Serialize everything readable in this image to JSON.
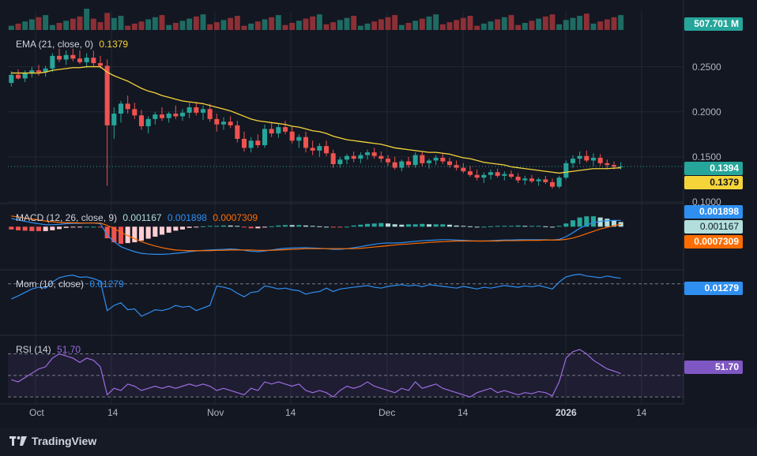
{
  "brand": {
    "name": "TradingView"
  },
  "colors": {
    "up": "#26a69a",
    "down": "#ef5350",
    "ema": "#f5d43a",
    "macd": "#2f8ff0",
    "signal": "#ff6d00",
    "mom": "#2f8ff0",
    "rsi": "#9c6be0",
    "grid": "#232734",
    "text": "#b2b5be"
  },
  "chart_data": {
    "type": "candlestick",
    "x_labels": [
      "Oct",
      "14",
      "Nov",
      "14",
      "Dec",
      "14",
      "2026",
      "14"
    ],
    "volume": {
      "last_label": "507.701 M"
    },
    "price_panel": {
      "legend": {
        "name": "EMA (21, close, 0)",
        "value": "0.1379"
      },
      "y_ticks": [
        "0.2500",
        "0.2000",
        "0.1500",
        "0.1000"
      ],
      "y_tick_values": [
        0.25,
        0.2,
        0.15,
        0.1
      ],
      "ylim": [
        0.1,
        0.275
      ],
      "last_price_label": "0.1394",
      "ema_label": "0.1379",
      "candles_ohlc": [
        [
          0.232,
          0.245,
          0.228,
          0.241
        ],
        [
          0.241,
          0.247,
          0.236,
          0.237
        ],
        [
          0.237,
          0.246,
          0.233,
          0.243
        ],
        [
          0.243,
          0.25,
          0.238,
          0.246
        ],
        [
          0.246,
          0.252,
          0.24,
          0.244
        ],
        [
          0.244,
          0.251,
          0.239,
          0.248
        ],
        [
          0.248,
          0.265,
          0.244,
          0.262
        ],
        [
          0.262,
          0.27,
          0.255,
          0.258
        ],
        [
          0.258,
          0.268,
          0.252,
          0.263
        ],
        [
          0.263,
          0.27,
          0.256,
          0.259
        ],
        [
          0.259,
          0.268,
          0.253,
          0.255
        ],
        [
          0.255,
          0.265,
          0.249,
          0.26
        ],
        [
          0.26,
          0.268,
          0.25,
          0.254
        ],
        [
          0.254,
          0.262,
          0.248,
          0.251
        ],
        [
          0.251,
          0.258,
          0.118,
          0.185
        ],
        [
          0.185,
          0.205,
          0.17,
          0.198
        ],
        [
          0.198,
          0.212,
          0.188,
          0.209
        ],
        [
          0.209,
          0.218,
          0.198,
          0.203
        ],
        [
          0.203,
          0.21,
          0.192,
          0.196
        ],
        [
          0.196,
          0.202,
          0.18,
          0.184
        ],
        [
          0.184,
          0.195,
          0.176,
          0.192
        ],
        [
          0.192,
          0.2,
          0.186,
          0.197
        ],
        [
          0.197,
          0.205,
          0.19,
          0.193
        ],
        [
          0.193,
          0.2,
          0.188,
          0.198
        ],
        [
          0.198,
          0.207,
          0.192,
          0.195
        ],
        [
          0.195,
          0.203,
          0.19,
          0.199
        ],
        [
          0.199,
          0.21,
          0.193,
          0.205
        ],
        [
          0.205,
          0.211,
          0.196,
          0.199
        ],
        [
          0.199,
          0.207,
          0.191,
          0.203
        ],
        [
          0.203,
          0.209,
          0.189,
          0.192
        ],
        [
          0.192,
          0.198,
          0.178,
          0.186
        ],
        [
          0.186,
          0.194,
          0.18,
          0.189
        ],
        [
          0.189,
          0.195,
          0.182,
          0.185
        ],
        [
          0.185,
          0.19,
          0.166,
          0.17
        ],
        [
          0.17,
          0.178,
          0.156,
          0.16
        ],
        [
          0.16,
          0.172,
          0.155,
          0.168
        ],
        [
          0.168,
          0.175,
          0.16,
          0.163
        ],
        [
          0.163,
          0.186,
          0.16,
          0.181
        ],
        [
          0.181,
          0.188,
          0.172,
          0.176
        ],
        [
          0.176,
          0.186,
          0.171,
          0.183
        ],
        [
          0.183,
          0.19,
          0.175,
          0.178
        ],
        [
          0.178,
          0.184,
          0.165,
          0.168
        ],
        [
          0.168,
          0.175,
          0.16,
          0.172
        ],
        [
          0.172,
          0.178,
          0.155,
          0.16
        ],
        [
          0.16,
          0.168,
          0.152,
          0.157
        ],
        [
          0.157,
          0.165,
          0.15,
          0.162
        ],
        [
          0.162,
          0.168,
          0.151,
          0.154
        ],
        [
          0.154,
          0.158,
          0.138,
          0.142
        ],
        [
          0.142,
          0.15,
          0.138,
          0.147
        ],
        [
          0.147,
          0.153,
          0.142,
          0.151
        ],
        [
          0.151,
          0.156,
          0.144,
          0.148
        ],
        [
          0.148,
          0.155,
          0.143,
          0.152
        ],
        [
          0.152,
          0.158,
          0.147,
          0.155
        ],
        [
          0.155,
          0.16,
          0.148,
          0.151
        ],
        [
          0.151,
          0.156,
          0.144,
          0.148
        ],
        [
          0.148,
          0.152,
          0.14,
          0.144
        ],
        [
          0.144,
          0.15,
          0.136,
          0.138
        ],
        [
          0.138,
          0.147,
          0.134,
          0.145
        ],
        [
          0.145,
          0.15,
          0.138,
          0.141
        ],
        [
          0.141,
          0.155,
          0.138,
          0.152
        ],
        [
          0.152,
          0.156,
          0.14,
          0.143
        ],
        [
          0.143,
          0.148,
          0.137,
          0.146
        ],
        [
          0.146,
          0.152,
          0.141,
          0.149
        ],
        [
          0.149,
          0.154,
          0.142,
          0.145
        ],
        [
          0.145,
          0.149,
          0.138,
          0.141
        ],
        [
          0.141,
          0.146,
          0.135,
          0.138
        ],
        [
          0.138,
          0.143,
          0.132,
          0.134
        ],
        [
          0.134,
          0.14,
          0.128,
          0.13
        ],
        [
          0.13,
          0.136,
          0.124,
          0.127
        ],
        [
          0.127,
          0.133,
          0.121,
          0.13
        ],
        [
          0.13,
          0.136,
          0.125,
          0.133
        ],
        [
          0.133,
          0.137,
          0.127,
          0.129
        ],
        [
          0.129,
          0.134,
          0.124,
          0.131
        ],
        [
          0.131,
          0.135,
          0.126,
          0.128
        ],
        [
          0.128,
          0.132,
          0.121,
          0.124
        ],
        [
          0.124,
          0.129,
          0.119,
          0.126
        ],
        [
          0.126,
          0.13,
          0.121,
          0.123
        ],
        [
          0.123,
          0.127,
          0.118,
          0.125
        ],
        [
          0.125,
          0.129,
          0.12,
          0.122
        ],
        [
          0.122,
          0.126,
          0.115,
          0.117
        ],
        [
          0.117,
          0.129,
          0.115,
          0.127
        ],
        [
          0.127,
          0.146,
          0.125,
          0.143
        ],
        [
          0.143,
          0.152,
          0.138,
          0.148
        ],
        [
          0.148,
          0.156,
          0.142,
          0.151
        ],
        [
          0.151,
          0.157,
          0.144,
          0.146
        ],
        [
          0.146,
          0.154,
          0.14,
          0.149
        ],
        [
          0.149,
          0.153,
          0.14,
          0.143
        ],
        [
          0.143,
          0.147,
          0.137,
          0.141
        ],
        [
          0.141,
          0.145,
          0.136,
          0.139
        ],
        [
          0.139,
          0.144,
          0.136,
          0.1394
        ]
      ],
      "ema": [
        0.243,
        0.243,
        0.243,
        0.243,
        0.243,
        0.244,
        0.246,
        0.247,
        0.248,
        0.249,
        0.249,
        0.25,
        0.25,
        0.25,
        0.244,
        0.24,
        0.237,
        0.234,
        0.23,
        0.226,
        0.223,
        0.221,
        0.218,
        0.216,
        0.214,
        0.212,
        0.211,
        0.21,
        0.209,
        0.207,
        0.205,
        0.203,
        0.201,
        0.198,
        0.195,
        0.192,
        0.19,
        0.189,
        0.188,
        0.187,
        0.186,
        0.184,
        0.183,
        0.181,
        0.179,
        0.178,
        0.176,
        0.173,
        0.171,
        0.169,
        0.168,
        0.167,
        0.166,
        0.165,
        0.164,
        0.162,
        0.16,
        0.159,
        0.158,
        0.157,
        0.156,
        0.155,
        0.155,
        0.154,
        0.153,
        0.151,
        0.149,
        0.148,
        0.146,
        0.144,
        0.143,
        0.142,
        0.141,
        0.139,
        0.138,
        0.137,
        0.136,
        0.135,
        0.134,
        0.133,
        0.132,
        0.133,
        0.134,
        0.135,
        0.136,
        0.137,
        0.137,
        0.137,
        0.1375,
        0.1379
      ]
    },
    "macd_panel": {
      "legend": {
        "name": "MACD (12, 26, close, 9)",
        "histogram": "0.001167",
        "macd": "0.001898",
        "signal": "0.0007309"
      },
      "ylim": [
        -0.012,
        0.006
      ],
      "macd": [
        0.0025,
        0.002,
        0.0016,
        0.0012,
        0.0009,
        0.0006,
        0.0006,
        0.0007,
        0.0009,
        0.001,
        0.001,
        0.0011,
        0.0011,
        0.0009,
        -0.0025,
        -0.0045,
        -0.006,
        -0.0068,
        -0.0075,
        -0.008,
        -0.0082,
        -0.0083,
        -0.0083,
        -0.0082,
        -0.008,
        -0.0078,
        -0.0075,
        -0.0073,
        -0.0071,
        -0.007,
        -0.0069,
        -0.0068,
        -0.0067,
        -0.0068,
        -0.0071,
        -0.0074,
        -0.0075,
        -0.0073,
        -0.007,
        -0.0067,
        -0.0065,
        -0.0064,
        -0.0063,
        -0.0063,
        -0.0064,
        -0.0065,
        -0.0066,
        -0.0068,
        -0.0068,
        -0.0066,
        -0.0063,
        -0.006,
        -0.0056,
        -0.0053,
        -0.005,
        -0.0049,
        -0.0049,
        -0.0048,
        -0.0046,
        -0.0044,
        -0.0042,
        -0.0041,
        -0.004,
        -0.0039,
        -0.0039,
        -0.004,
        -0.0041,
        -0.0042,
        -0.0043,
        -0.0043,
        -0.0042,
        -0.0041,
        -0.004,
        -0.004,
        -0.0039,
        -0.0039,
        -0.0039,
        -0.0039,
        -0.0039,
        -0.004,
        -0.0038,
        -0.003,
        -0.0018,
        -0.0005,
        0.0005,
        0.0012,
        0.0016,
        0.0018,
        0.0019,
        0.001898
      ],
      "signal": [
        0.0032,
        0.0029,
        0.0026,
        0.0023,
        0.002,
        0.0017,
        0.0015,
        0.0013,
        0.0012,
        0.0012,
        0.0011,
        0.0011,
        0.0011,
        0.0011,
        0.0004,
        -0.0006,
        -0.0017,
        -0.0027,
        -0.0036,
        -0.0045,
        -0.0052,
        -0.0058,
        -0.0063,
        -0.0067,
        -0.007,
        -0.0071,
        -0.0072,
        -0.0072,
        -0.0072,
        -0.0072,
        -0.0071,
        -0.0071,
        -0.007,
        -0.007,
        -0.007,
        -0.007,
        -0.0071,
        -0.0071,
        -0.0071,
        -0.007,
        -0.0069,
        -0.0068,
        -0.0067,
        -0.0066,
        -0.0066,
        -0.0066,
        -0.0066,
        -0.0066,
        -0.0066,
        -0.0066,
        -0.0066,
        -0.0065,
        -0.0063,
        -0.0061,
        -0.0059,
        -0.0057,
        -0.0055,
        -0.0053,
        -0.0052,
        -0.005,
        -0.0049,
        -0.0047,
        -0.0046,
        -0.0045,
        -0.0044,
        -0.0043,
        -0.0043,
        -0.0043,
        -0.0043,
        -0.0043,
        -0.0043,
        -0.0043,
        -0.0042,
        -0.0042,
        -0.0042,
        -0.0041,
        -0.0041,
        -0.0041,
        -0.004,
        -0.004,
        -0.004,
        -0.0038,
        -0.0034,
        -0.0028,
        -0.0021,
        -0.0014,
        -0.0007,
        -0.0002,
        0.0003,
        0.0007309
      ]
    },
    "mom_panel": {
      "legend": {
        "name": "Mom (10, close)",
        "value": "0.01279"
      },
      "ylim": [
        -0.11,
        0.025
      ],
      "values": [
        -0.035,
        -0.028,
        -0.02,
        -0.012,
        -0.008,
        -0.01,
        0.004,
        0.014,
        0.018,
        0.02,
        0.015,
        0.016,
        0.012,
        0.006,
        -0.062,
        -0.05,
        -0.044,
        -0.06,
        -0.058,
        -0.075,
        -0.068,
        -0.06,
        -0.062,
        -0.058,
        -0.05,
        -0.054,
        -0.052,
        -0.062,
        -0.056,
        -0.05,
        -0.005,
        -0.008,
        -0.012,
        -0.022,
        -0.03,
        -0.02,
        -0.018,
        -0.005,
        -0.008,
        -0.012,
        -0.01,
        -0.014,
        -0.016,
        -0.024,
        -0.02,
        -0.018,
        -0.01,
        -0.018,
        -0.012,
        -0.01,
        -0.008,
        -0.006,
        -0.004,
        -0.008,
        -0.01,
        -0.006,
        -0.004,
        -0.002,
        -0.005,
        -0.003,
        -0.007,
        -0.002,
        -0.004,
        -0.006,
        -0.008,
        -0.01,
        -0.006,
        -0.009,
        -0.012,
        -0.008,
        -0.01,
        -0.007,
        -0.004,
        -0.006,
        -0.008,
        -0.005,
        -0.007,
        -0.004,
        -0.008,
        -0.012,
        0.004,
        0.016,
        0.02,
        0.022,
        0.018,
        0.016,
        0.014,
        0.018,
        0.015,
        0.01279
      ]
    },
    "rsi_panel": {
      "legend": {
        "name": "RSI (14)",
        "value": "51.70"
      },
      "ylim": [
        25,
        85
      ],
      "band": [
        30,
        70
      ],
      "values": [
        46,
        44,
        48,
        52,
        56,
        58,
        66,
        70,
        68,
        66,
        62,
        66,
        64,
        58,
        32,
        38,
        36,
        42,
        40,
        36,
        38,
        40,
        38,
        40,
        38,
        40,
        42,
        40,
        42,
        40,
        36,
        38,
        36,
        34,
        32,
        38,
        36,
        44,
        42,
        44,
        42,
        40,
        42,
        36,
        34,
        36,
        34,
        30,
        36,
        40,
        38,
        40,
        44,
        40,
        38,
        36,
        34,
        38,
        36,
        44,
        38,
        40,
        42,
        38,
        36,
        34,
        32,
        30,
        34,
        36,
        38,
        34,
        36,
        34,
        32,
        34,
        33,
        35,
        34,
        31,
        44,
        66,
        72,
        74,
        70,
        64,
        60,
        56,
        54,
        51.7
      ]
    }
  }
}
